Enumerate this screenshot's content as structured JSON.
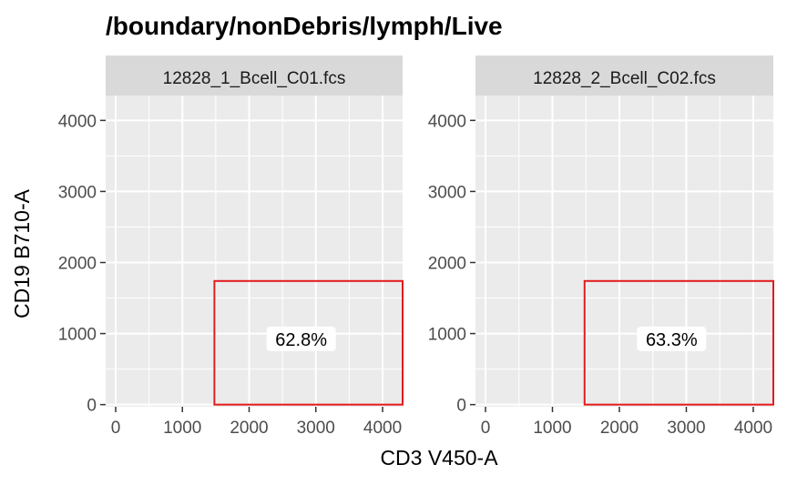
{
  "chart_data": {
    "type": "scatter",
    "title": "/boundary/nonDebris/lymph/Live",
    "xlabel": "CD3 V450-A",
    "ylabel": "CD19 B710-A",
    "xlim": [
      -150,
      4300
    ],
    "ylim": [
      -30,
      4350
    ],
    "xticks": [
      0,
      1000,
      2000,
      3000,
      4000
    ],
    "yticks": [
      0,
      1000,
      2000,
      3000,
      4000
    ],
    "xtick_labels": [
      "0",
      "1000",
      "2000",
      "3000",
      "4000"
    ],
    "ytick_labels": [
      "0",
      "1000",
      "2000",
      "3000",
      "4000"
    ],
    "grid": true,
    "gate_color": "#e31a1c",
    "panels": [
      {
        "strip": "12828_1_Bcell_C01.fcs",
        "gate": {
          "x": [
            1480,
            4300
          ],
          "y": [
            0,
            1740
          ]
        },
        "gate_label": "62.8%",
        "label_pos": {
          "x": 2780,
          "y": 920
        }
      },
      {
        "strip": "12828_2_Bcell_C02.fcs",
        "gate": {
          "x": [
            1480,
            4300
          ],
          "y": [
            0,
            1740
          ]
        },
        "gate_label": "63.3%",
        "label_pos": {
          "x": 2780,
          "y": 920
        }
      }
    ]
  }
}
